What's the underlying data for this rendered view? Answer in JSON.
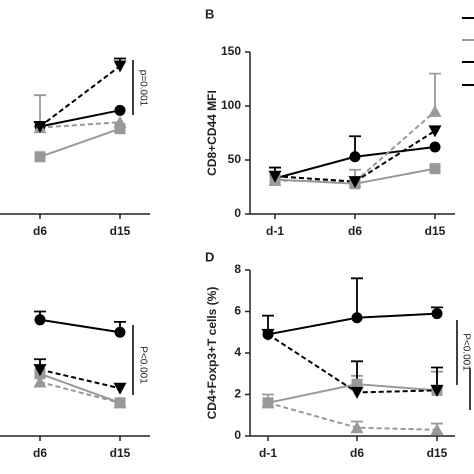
{
  "chart_data": [
    {
      "type": "line",
      "annotation": "p=0.001",
      "categories": [
        null,
        "d6",
        "d15"
      ],
      "ylim": [
        0,
        150
      ],
      "series": [
        {
          "color": "#000000",
          "dashed": false,
          "marker": "circle",
          "values": [
            null,
            81,
            96
          ],
          "errors": [
            null,
            4,
            null
          ]
        },
        {
          "color": "#999999",
          "dashed": false,
          "marker": "square",
          "values": [
            null,
            53,
            79
          ],
          "errors": [
            null,
            null,
            null
          ]
        },
        {
          "color": "#999999",
          "dashed": true,
          "marker": "triangle",
          "values": [
            null,
            80,
            85
          ],
          "errors": [
            null,
            30,
            null
          ]
        },
        {
          "color": "#000000",
          "dashed": true,
          "marker": "triangle-down",
          "values": [
            null,
            81,
            137
          ],
          "errors": [
            null,
            null,
            7
          ]
        }
      ]
    },
    {
      "type": "line",
      "panel": "B",
      "y_label": "CD8+CD44 MFI",
      "categories": [
        "d-1",
        "d6",
        "d15"
      ],
      "ylim": [
        0,
        150
      ],
      "yticks": [
        0,
        50,
        100,
        150
      ],
      "series": [
        {
          "color": "#000000",
          "dashed": false,
          "marker": "circle",
          "values": [
            33,
            53,
            62
          ],
          "errors": [
            10,
            19,
            null
          ]
        },
        {
          "color": "#999999",
          "dashed": false,
          "marker": "square",
          "values": [
            32,
            28,
            42
          ],
          "errors": [
            null,
            13,
            null
          ]
        },
        {
          "color": "#999999",
          "dashed": true,
          "marker": "triangle",
          "values": [
            31,
            30,
            95
          ],
          "errors": [
            null,
            null,
            35
          ]
        },
        {
          "color": "#000000",
          "dashed": true,
          "marker": "triangle-down",
          "values": [
            35,
            30,
            77
          ],
          "errors": [
            null,
            null,
            null
          ]
        }
      ]
    },
    {
      "type": "line",
      "annotation": "P<0.001",
      "categories": [
        null,
        "d6",
        "d15"
      ],
      "ylim": [
        0,
        8
      ],
      "series": [
        {
          "color": "#000000",
          "dashed": false,
          "marker": "circle",
          "values": [
            null,
            5.6,
            5.0
          ],
          "errors": [
            null,
            0.4,
            0.5
          ]
        },
        {
          "color": "#999999",
          "dashed": false,
          "marker": "square",
          "values": [
            null,
            3.0,
            1.6
          ],
          "errors": [
            null,
            null,
            null
          ]
        },
        {
          "color": "#999999",
          "dashed": true,
          "marker": "triangle",
          "values": [
            null,
            2.6,
            1.6
          ],
          "errors": [
            null,
            null,
            null
          ]
        },
        {
          "color": "#000000",
          "dashed": true,
          "marker": "triangle-down",
          "values": [
            null,
            3.2,
            2.3
          ],
          "errors": [
            null,
            0.5,
            null
          ]
        }
      ]
    },
    {
      "type": "line",
      "panel": "D",
      "y_label": "CD4+Foxp3+T cells (%)",
      "annotation": "P<0.001",
      "categories": [
        "d-1",
        "d6",
        "d15"
      ],
      "ylim": [
        0,
        8
      ],
      "yticks": [
        0,
        2,
        4,
        6,
        8
      ],
      "series": [
        {
          "color": "#000000",
          "dashed": false,
          "marker": "circle",
          "values": [
            4.9,
            5.7,
            5.9
          ],
          "errors": [
            0.9,
            1.9,
            0.3
          ]
        },
        {
          "color": "#999999",
          "dashed": false,
          "marker": "square",
          "values": [
            1.6,
            2.5,
            2.2
          ],
          "errors": [
            0.4,
            0.4,
            0.9
          ]
        },
        {
          "color": "#999999",
          "dashed": true,
          "marker": "triangle",
          "values": [
            1.6,
            0.4,
            0.3
          ],
          "errors": [
            null,
            0.3,
            0.3
          ]
        },
        {
          "color": "#000000",
          "dashed": true,
          "marker": "triangle-down",
          "values": [
            4.9,
            2.1,
            2.2
          ],
          "errors": [
            null,
            1.5,
            1.1
          ]
        }
      ]
    }
  ]
}
